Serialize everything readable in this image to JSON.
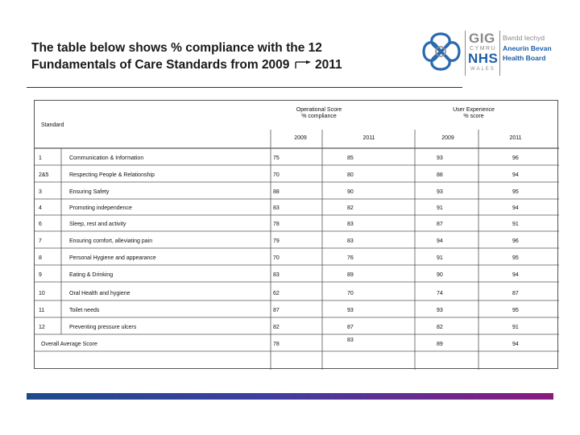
{
  "title": {
    "line1": "The table below shows % compliance with the 12",
    "line2_a": "Fundamentals of Care Standards from 2009",
    "line2_b": "2011"
  },
  "logo": {
    "gig": "GIG",
    "cymru": "CYMRU",
    "nhs": "NHS",
    "wales": "WALES",
    "board_lines": [
      "Bwrdd Iechyd",
      "Aneurin Bevan",
      "Health Board"
    ]
  },
  "table": {
    "standard_header": "Standard",
    "group_operational": [
      "Operational Score",
      "% compliance"
    ],
    "group_user": [
      "User Experience",
      "% score"
    ],
    "years": [
      "2009",
      "2011",
      "2009",
      "2011"
    ],
    "rows": [
      {
        "num": "1",
        "name": "Communication & Information",
        "values": [
          "75",
          "85",
          "93",
          "96"
        ]
      },
      {
        "num": "2&5",
        "name": "Respecting People & Relationship",
        "values": [
          "70",
          "80",
          "88",
          "94"
        ]
      },
      {
        "num": "3",
        "name": "Ensuring Safety",
        "values": [
          "88",
          "90",
          "93",
          "95"
        ]
      },
      {
        "num": "4",
        "name": "Promoting independence",
        "values": [
          "83",
          "82",
          "91",
          "94"
        ]
      },
      {
        "num": "6",
        "name": "Sleep, rest and activity",
        "values": [
          "78",
          "83",
          "87",
          "91"
        ]
      },
      {
        "num": "7",
        "name": "Ensuring comfort, alleviating pain",
        "values": [
          "79",
          "83",
          "94",
          "96"
        ]
      },
      {
        "num": "8",
        "name": "Personal Hygiene and appearance",
        "values": [
          "70",
          "76",
          "91",
          "95"
        ]
      },
      {
        "num": "9",
        "name": "Eating & Drinking",
        "values": [
          "83",
          "89",
          "90",
          "94"
        ]
      },
      {
        "num": "10",
        "name": "Oral Health and hygiene",
        "values": [
          "62",
          "70",
          "74",
          "87"
        ]
      },
      {
        "num": "11",
        "name": "Toilet needs",
        "values": [
          "87",
          "93",
          "93",
          "95"
        ]
      },
      {
        "num": "12",
        "name": "Preventing pressure ulcers",
        "values": [
          "82",
          "87",
          "82",
          "91"
        ]
      }
    ],
    "overall": {
      "label": "Overall Average Score",
      "values": [
        "78",
        "83",
        "89",
        "94"
      ]
    }
  }
}
